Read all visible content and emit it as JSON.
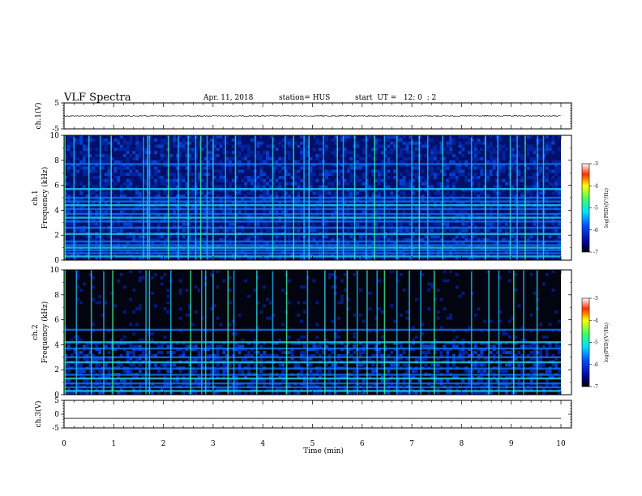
{
  "header": {
    "title": "VLF Spectra",
    "date": "Apr. 11, 2018",
    "station": "station= HUS",
    "start": "start  UT =   12: 0  : 2"
  },
  "chart_data": [
    {
      "type": "line",
      "panel": "ch1-waveform",
      "ylabel": "ch.1(V)",
      "ylim": [
        -5,
        5
      ],
      "yticks": [
        "5",
        "-5"
      ],
      "xlim": [
        0,
        10
      ],
      "series": [
        {
          "values_description_free": true,
          "level": 0,
          "noise_amplitude": 0.35,
          "color": "#000000"
        }
      ]
    },
    {
      "type": "heatmap",
      "panel": "ch1-spectrogram",
      "ylabel": "ch.1",
      "ylabel2": "Frequency (kHz)",
      "ylim": [
        0,
        10
      ],
      "yticks": [
        "0",
        "2",
        "4",
        "6",
        "8",
        "10"
      ],
      "xlim": [
        0,
        10
      ],
      "colorbar": {
        "label": "log(PSD)(V²/Hz)",
        "range": [
          -7,
          -3
        ],
        "ticks": [
          "-3",
          "-4",
          "-5",
          "-6",
          "-7"
        ]
      },
      "bands_khz": [
        0.3,
        0.55,
        0.8,
        1.0,
        1.2,
        1.5,
        2.1,
        2.6,
        3.1,
        3.4,
        3.7,
        4.1,
        4.4,
        4.7,
        5.0,
        5.7,
        7.7
      ],
      "bursts_min": [
        0.02,
        0.2,
        0.5,
        0.73,
        0.95,
        1.6,
        1.68,
        1.72,
        2.1,
        2.3,
        2.5,
        2.65,
        2.75,
        2.88,
        3.0,
        3.25,
        3.45,
        3.85,
        4.2,
        4.45,
        4.62,
        4.83,
        4.93,
        5.22,
        5.5,
        5.62,
        5.85,
        6.08,
        6.25,
        6.45,
        6.7,
        7.0,
        7.15,
        7.32,
        7.62,
        8.2,
        8.48,
        8.73,
        8.98,
        9.12,
        9.28,
        9.53,
        9.65
      ]
    },
    {
      "type": "heatmap",
      "panel": "ch2-spectrogram",
      "ylabel": "ch.2",
      "ylabel2": "Frequency (kHz)",
      "ylim": [
        0,
        10
      ],
      "yticks": [
        "0",
        "2",
        "4",
        "6",
        "8",
        "10"
      ],
      "xlim": [
        0,
        10
      ],
      "colorbar": {
        "label": "log(PSD)(V²/Hz)",
        "range": [
          -7,
          -3
        ],
        "ticks": [
          "-3",
          "-4",
          "-5",
          "-6",
          "-7"
        ]
      },
      "bands_khz": [
        0.3,
        0.6,
        0.9,
        1.3,
        1.6,
        2.1,
        2.6,
        3.0,
        3.7,
        4.2,
        5.2
      ],
      "bursts_min": [
        0.02,
        0.25,
        0.55,
        0.8,
        0.98,
        1.65,
        1.72,
        2.15,
        2.55,
        2.77,
        2.85,
        3.0,
        3.3,
        3.42,
        3.88,
        4.2,
        4.48,
        4.9,
        5.25,
        5.45,
        5.7,
        5.9,
        6.1,
        6.3,
        6.45,
        6.7,
        6.95,
        7.18,
        7.45,
        8.2,
        8.55,
        8.75,
        9.05,
        9.25,
        9.52
      ]
    },
    {
      "type": "line",
      "panel": "ch3-waveform",
      "ylabel": "ch.3(V)",
      "ylim": [
        -5,
        5
      ],
      "yticks": [
        "5",
        "0",
        "-5"
      ],
      "xlabel": "Time  (min)",
      "xlim": [
        0,
        10
      ],
      "xticks": [
        "0",
        "1",
        "2",
        "3",
        "4",
        "5",
        "6",
        "7",
        "8",
        "9",
        "10"
      ],
      "series": [
        {
          "level": -1.5,
          "noise_amplitude": 0,
          "color": "#000000"
        }
      ]
    }
  ]
}
